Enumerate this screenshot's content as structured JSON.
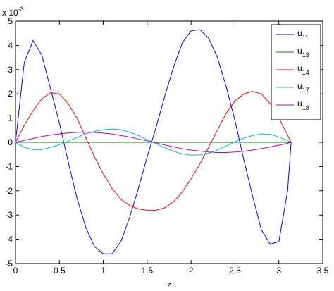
{
  "chart_data": {
    "type": "line",
    "x_label": "z",
    "y_multiplier": "x 10",
    "y_multiplier_exp": "-3",
    "x": [
      0,
      0.1,
      0.2,
      0.3,
      0.4,
      0.5,
      0.6,
      0.7,
      0.8,
      0.9,
      1.0,
      1.1,
      1.2,
      1.3,
      1.4,
      1.5,
      1.6,
      1.7,
      1.8,
      1.9,
      2.0,
      2.1,
      2.2,
      2.3,
      2.4,
      2.5,
      2.6,
      2.7,
      2.8,
      2.9,
      3.0,
      3.1,
      3.14
    ],
    "series": [
      {
        "name": "u",
        "subscript": "11",
        "color": "#0000ff",
        "values": [
          0,
          3.3,
          4.2,
          3.6,
          2.2,
          0.8,
          -0.8,
          -2.3,
          -3.5,
          -4.3,
          -4.6,
          -4.6,
          -4.1,
          -3.1,
          -1.9,
          -0.6,
          0.6,
          1.9,
          3.1,
          4.1,
          4.6,
          4.65,
          4.3,
          3.5,
          2.3,
          0.9,
          -0.7,
          -2.2,
          -3.6,
          -4.2,
          -4.1,
          -2.0,
          0
        ]
      },
      {
        "name": "u",
        "subscript": "13",
        "color": "#008000",
        "values": [
          0,
          0,
          0,
          0,
          0,
          0,
          0,
          0,
          0,
          0,
          0,
          0,
          0,
          0,
          0,
          0,
          0,
          0,
          0,
          0,
          0,
          0,
          0,
          0,
          0,
          0,
          0,
          0,
          0,
          0,
          0,
          0,
          0
        ]
      },
      {
        "name": "u",
        "subscript": "14",
        "color": "#ff0000",
        "values": [
          0,
          0.7,
          1.3,
          1.8,
          2.05,
          2.0,
          1.6,
          1.0,
          0.2,
          -0.6,
          -1.3,
          -1.9,
          -2.35,
          -2.6,
          -2.75,
          -2.8,
          -2.8,
          -2.7,
          -2.45,
          -2.05,
          -1.5,
          -0.9,
          -0.2,
          0.5,
          1.2,
          1.7,
          2.0,
          2.1,
          2.0,
          1.6,
          1.0,
          0.3,
          0
        ]
      },
      {
        "name": "u",
        "subscript": "17",
        "color": "#00bfbf",
        "values": [
          0,
          -0.2,
          -0.3,
          -0.3,
          -0.2,
          -0.1,
          0.05,
          0.2,
          0.35,
          0.45,
          0.52,
          0.55,
          0.52,
          0.42,
          0.28,
          0.1,
          -0.05,
          -0.22,
          -0.37,
          -0.48,
          -0.53,
          -0.52,
          -0.45,
          -0.32,
          -0.15,
          0.02,
          0.17,
          0.28,
          0.35,
          0.33,
          0.22,
          0.08,
          0
        ]
      },
      {
        "name": "u",
        "subscript": "18",
        "color": "#bf00bf",
        "values": [
          0,
          0.08,
          0.16,
          0.24,
          0.3,
          0.35,
          0.39,
          0.41,
          0.42,
          0.41,
          0.38,
          0.34,
          0.28,
          0.22,
          0.14,
          0.06,
          -0.02,
          -0.11,
          -0.19,
          -0.26,
          -0.32,
          -0.36,
          -0.4,
          -0.42,
          -0.42,
          -0.4,
          -0.37,
          -0.32,
          -0.26,
          -0.19,
          -0.12,
          -0.04,
          0
        ]
      }
    ],
    "xlim": [
      0,
      3.5
    ],
    "ylim": [
      -5,
      5
    ],
    "xticks": [
      0,
      0.5,
      1,
      1.5,
      2,
      2.5,
      3,
      3.5
    ],
    "yticks": [
      -5,
      -4,
      -3,
      -2,
      -1,
      0,
      1,
      2,
      3,
      4,
      5
    ],
    "legend": "upper right"
  }
}
